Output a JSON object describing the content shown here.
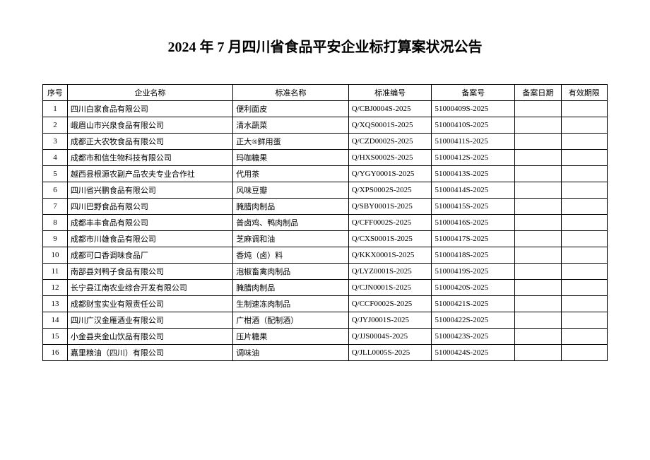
{
  "title": "2024 年 7 月四川省食品平安企业标打算案状况公告",
  "table": {
    "columns": [
      "序号",
      "企业名称",
      "标准名称",
      "标准编号",
      "备案号",
      "备案日期",
      "有效期限"
    ],
    "rows": [
      [
        "1",
        "四川白家食品有限公司",
        "便利面皮",
        "Q/CBJ0004S-2025",
        "51000409S-2025",
        "",
        ""
      ],
      [
        "2",
        "峨眉山市兴泉食品有限公司",
        "清水蔬菜",
        "Q/XQS0001S-2025",
        "51000410S-2025",
        "",
        ""
      ],
      [
        "3",
        "成都正大农牧食品有限公司",
        "正大®鲜用蛋",
        "Q/CZD0002S-2025",
        "51000411S-2025",
        "",
        ""
      ],
      [
        "4",
        "成都市和信生物科技有限公司",
        "玛咖糖果",
        "Q/HXS0002S-2025",
        "51000412S-2025",
        "",
        ""
      ],
      [
        "5",
        "越西县根源农副产品农夫专业合作社",
        "代用茶",
        "Q/YGY0001S-2025",
        "51000413S-2025",
        "",
        ""
      ],
      [
        "6",
        "四川省兴鹏食品有限公司",
        "风味豆瓣",
        "Q/XPS0002S-2025",
        "51000414S-2025",
        "",
        ""
      ],
      [
        "7",
        "四川巴野食品有限公司",
        "腌腊肉制品",
        "Q/SBY0001S-2025",
        "51000415S-2025",
        "",
        ""
      ],
      [
        "8",
        "成都丰丰食品有限公司",
        "普卤鸡、鸭肉制品",
        "Q/CFF0002S-2025",
        "51000416S-2025",
        "",
        ""
      ],
      [
        "9",
        "成都市川雄食品有限公司",
        "芝麻调和油",
        "Q/CXS0001S-2025",
        "51000417S-2025",
        "",
        ""
      ],
      [
        "10",
        "成都可口香调味食品厂",
        "香炖（卤）料",
        "Q/KKX0001S-2025",
        "51000418S-2025",
        "",
        ""
      ],
      [
        "11",
        "南部县刘鸭子食品有限公司",
        "泡椒畜禽肉制品",
        "Q/LYZ0001S-2025",
        "51000419S-2025",
        "",
        ""
      ],
      [
        "12",
        "长宁县江南农业综合开发有限公司",
        "腌腊肉制品",
        "Q/CJN0001S-2025",
        "51000420S-2025",
        "",
        ""
      ],
      [
        "13",
        "成都财宝实业有限责任公司",
        "生制速冻肉制品",
        "Q/CCF0002S-2025",
        "51000421S-2025",
        "",
        ""
      ],
      [
        "14",
        "四川广汉金雁酒业有限公司",
        "广柑酒（配制酒）",
        "Q/JYJ0001S-2025",
        "51000422S-2025",
        "",
        ""
      ],
      [
        "15",
        "小金县夹金山饮品有限公司",
        "压片糖果",
        "Q/JJS0004S-2025",
        "51000423S-2025",
        "",
        ""
      ],
      [
        "16",
        "嘉里粮油（四川）有限公司",
        "调味油",
        "Q/JLL0005S-2025",
        "51000424S-2025",
        "",
        ""
      ]
    ],
    "column_classes": [
      "col-seq",
      "col-company",
      "col-standard",
      "col-code",
      "col-filing",
      "col-date",
      "col-validity"
    ]
  }
}
